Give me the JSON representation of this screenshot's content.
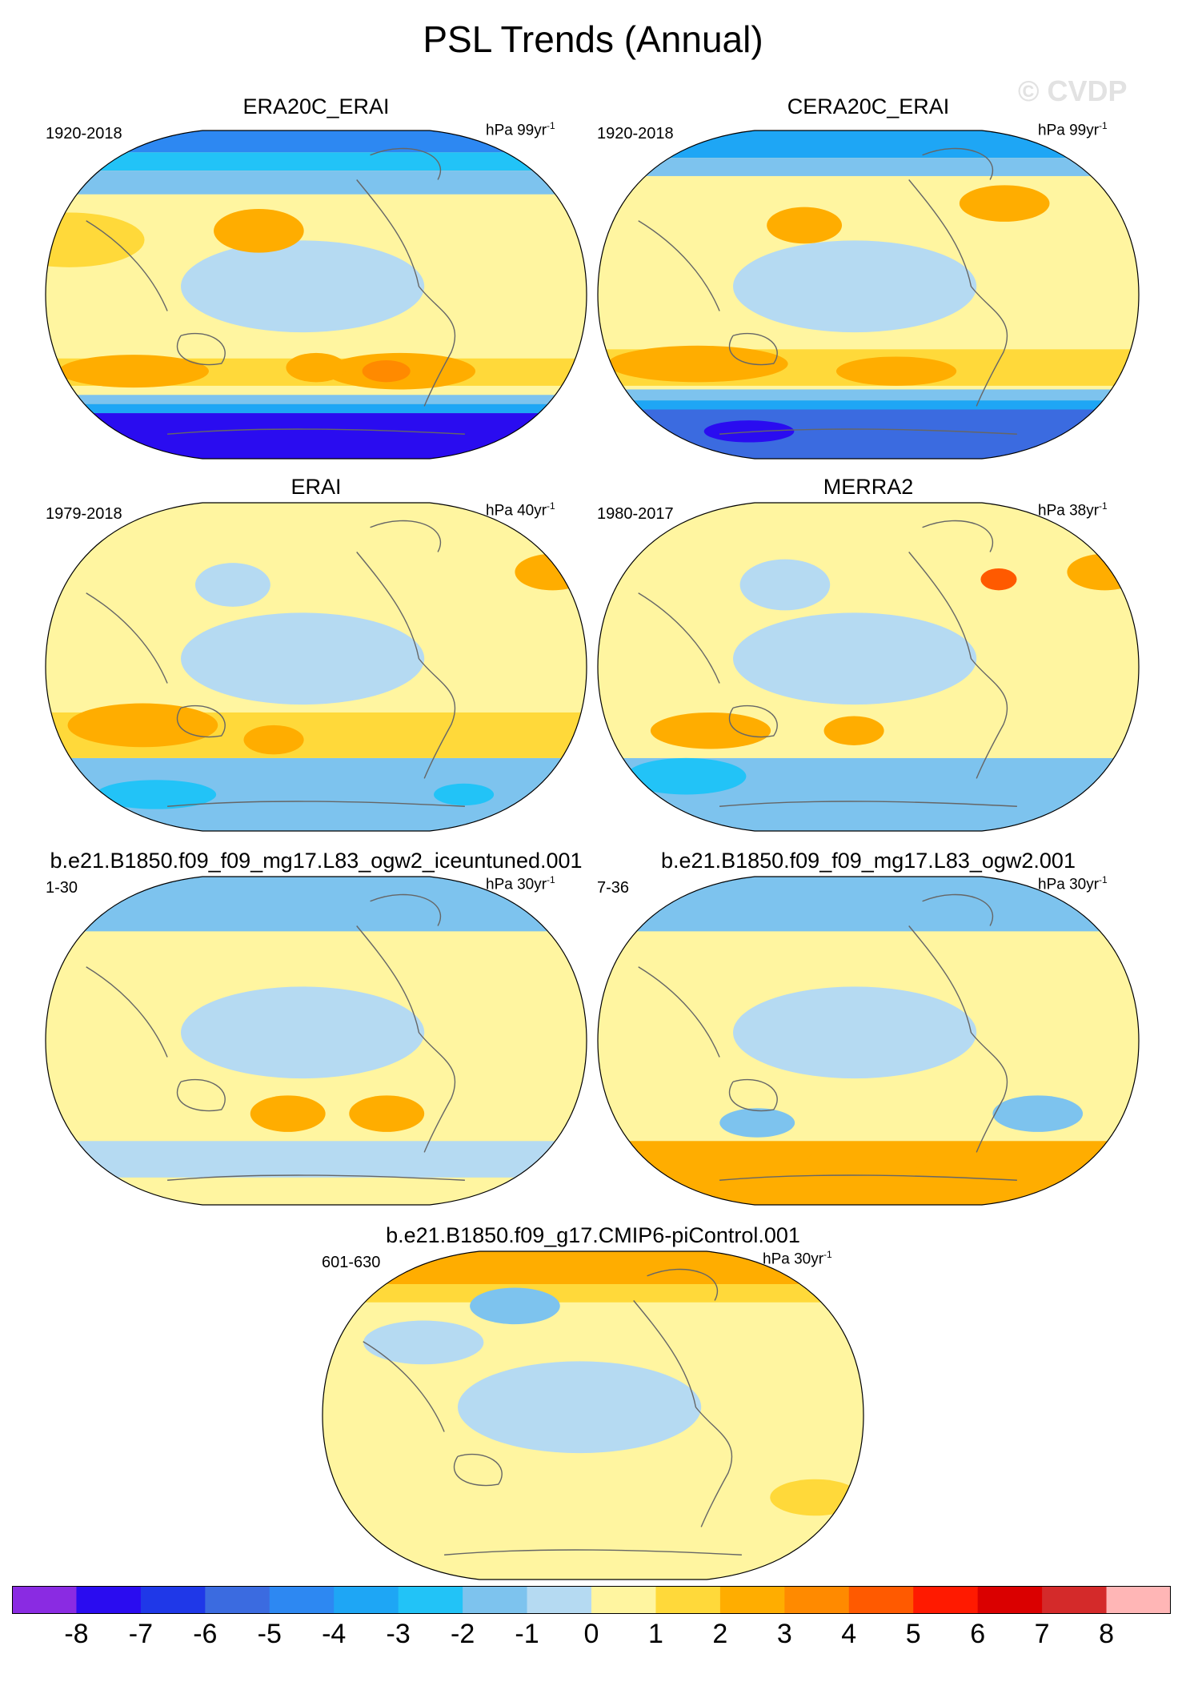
{
  "title": "PSL Trends (Annual)",
  "watermark": "© CVDP",
  "chart_data": {
    "type": "heatmap",
    "title": "PSL Trends (Annual)",
    "panels": [
      {
        "id": "era20c-erai",
        "title": "ERA20C_ERAI",
        "period": "1920-2018",
        "units_base": "hPa 99yr",
        "units_exp": "-1",
        "features": [
          {
            "type": "band",
            "lat": [
              78,
              90
            ],
            "value": -5
          },
          {
            "type": "band",
            "lat": [
              68,
              78
            ],
            "value": -3
          },
          {
            "type": "band",
            "lat": [
              55,
              68
            ],
            "value": -1.5
          },
          {
            "type": "band",
            "lat": [
              -35,
              -50
            ],
            "value": 1.5
          },
          {
            "type": "band",
            "lat": [
              -55,
              -60
            ],
            "value": -2
          },
          {
            "type": "band",
            "lat": [
              -60,
              -65
            ],
            "value": -4
          },
          {
            "type": "band",
            "lat": [
              -65,
              -90
            ],
            "value": -7.5
          },
          {
            "type": "blob",
            "lon": -170,
            "lat": 30,
            "w": 50,
            "h": 15,
            "value": 1.5
          },
          {
            "type": "blob",
            "lon": -40,
            "lat": 35,
            "w": 30,
            "h": 12,
            "value": 2
          },
          {
            "type": "blob",
            "lon": 60,
            "lat": -42,
            "w": 50,
            "h": 10,
            "value": 2.5
          },
          {
            "type": "blob",
            "lon": 50,
            "lat": -42,
            "w": 16,
            "h": 6,
            "value": 3.5
          },
          {
            "type": "blob",
            "lon": -130,
            "lat": -42,
            "w": 50,
            "h": 9,
            "value": 2.5
          },
          {
            "type": "blob",
            "lon": 0,
            "lat": -40,
            "w": 20,
            "h": 8,
            "value": 2
          }
        ]
      },
      {
        "id": "cera20c-erai",
        "title": "CERA20C_ERAI",
        "period": "1920-2018",
        "units_base": "hPa 99yr",
        "units_exp": "-1",
        "features": [
          {
            "type": "band",
            "lat": [
              75,
              90
            ],
            "value": -3.5
          },
          {
            "type": "band",
            "lat": [
              65,
              75
            ],
            "value": -1.5
          },
          {
            "type": "band",
            "lat": [
              -30,
              -50
            ],
            "value": 1.5
          },
          {
            "type": "band",
            "lat": [
              -52,
              -58
            ],
            "value": -1.5
          },
          {
            "type": "band",
            "lat": [
              -58,
              -63
            ],
            "value": -3.5
          },
          {
            "type": "band",
            "lat": [
              -63,
              -90
            ],
            "value": -5.5
          },
          {
            "type": "blob",
            "lon": 100,
            "lat": 50,
            "w": 30,
            "h": 10,
            "value": 2.5
          },
          {
            "type": "blob",
            "lon": -45,
            "lat": 38,
            "w": 25,
            "h": 10,
            "value": 2
          },
          {
            "type": "blob",
            "lon": -120,
            "lat": -38,
            "w": 60,
            "h": 10,
            "value": 2.5
          },
          {
            "type": "blob",
            "lon": 20,
            "lat": -42,
            "w": 40,
            "h": 8,
            "value": 2.5
          },
          {
            "type": "blob",
            "lon": -100,
            "lat": -75,
            "w": 30,
            "h": 6,
            "value": -7.5
          }
        ]
      },
      {
        "id": "erai",
        "title": "ERAI",
        "period": "1979-2018",
        "units_base": "hPa 40yr",
        "units_exp": "-1",
        "features": [
          {
            "type": "band",
            "lat": [
              -50,
              -90
            ],
            "value": -1.5
          },
          {
            "type": "band",
            "lat": [
              -25,
              -50
            ],
            "value": 1
          },
          {
            "type": "blob",
            "lon": 175,
            "lat": 52,
            "w": 25,
            "h": 10,
            "value": 2
          },
          {
            "type": "blob",
            "lon": -120,
            "lat": -32,
            "w": 50,
            "h": 12,
            "value": 2
          },
          {
            "type": "blob",
            "lon": -30,
            "lat": -40,
            "w": 20,
            "h": 8,
            "value": 2
          },
          {
            "type": "blob",
            "lon": -130,
            "lat": -70,
            "w": 40,
            "h": 8,
            "value": -3
          },
          {
            "type": "blob",
            "lon": 120,
            "lat": -70,
            "w": 20,
            "h": 6,
            "value": -3
          },
          {
            "type": "blob",
            "lon": -60,
            "lat": 45,
            "w": 25,
            "h": 12,
            "value": -1
          }
        ]
      },
      {
        "id": "merra2",
        "title": "MERRA2",
        "period": "1980-2017",
        "units_base": "hPa 38yr",
        "units_exp": "-1",
        "features": [
          {
            "type": "band",
            "lat": [
              -50,
              -90
            ],
            "value": -1.5
          },
          {
            "type": "band",
            "lat": [
              -25,
              -50
            ],
            "value": 0.8
          },
          {
            "type": "blob",
            "lon": 95,
            "lat": 48,
            "w": 12,
            "h": 6,
            "value": 4
          },
          {
            "type": "blob",
            "lon": 175,
            "lat": 52,
            "w": 25,
            "h": 10,
            "value": 2
          },
          {
            "type": "blob",
            "lon": -110,
            "lat": -35,
            "w": 40,
            "h": 10,
            "value": 2
          },
          {
            "type": "blob",
            "lon": -10,
            "lat": -35,
            "w": 20,
            "h": 8,
            "value": 2
          },
          {
            "type": "blob",
            "lon": -140,
            "lat": -60,
            "w": 40,
            "h": 10,
            "value": -3
          },
          {
            "type": "blob",
            "lon": -60,
            "lat": 45,
            "w": 30,
            "h": 14,
            "value": -1
          }
        ]
      },
      {
        "id": "iceuntuned",
        "title": "b.e21.B1850.f09_f09_mg17.L83_ogw2_iceuntuned.001",
        "period": "1-30",
        "units_base": "hPa 30yr",
        "units_exp": "-1",
        "features": [
          {
            "type": "band",
            "lat": [
              60,
              90
            ],
            "value": -1.5
          },
          {
            "type": "band",
            "lat": [
              -55,
              -75
            ],
            "value": -1
          },
          {
            "type": "blob",
            "lon": 50,
            "lat": -40,
            "w": 25,
            "h": 10,
            "value": 2
          },
          {
            "type": "blob",
            "lon": -20,
            "lat": -40,
            "w": 25,
            "h": 10,
            "value": 2
          },
          {
            "type": "blob",
            "lon": -150,
            "lat": 25,
            "w": 40,
            "h": 15,
            "value": 0.8
          }
        ]
      },
      {
        "id": "ogw2",
        "title": "b.e21.B1850.f09_f09_mg17.L83_ogw2.001",
        "period": "7-36",
        "units_base": "hPa 30yr",
        "units_exp": "-1",
        "features": [
          {
            "type": "band",
            "lat": [
              60,
              90
            ],
            "value": -1.5
          },
          {
            "type": "band",
            "lat": [
              -55,
              -90
            ],
            "value": 2
          },
          {
            "type": "blob",
            "lon": 120,
            "lat": -40,
            "w": 30,
            "h": 10,
            "value": -2
          },
          {
            "type": "blob",
            "lon": -80,
            "lat": -45,
            "w": 25,
            "h": 8,
            "value": -2
          },
          {
            "type": "blob",
            "lon": 0,
            "lat": -65,
            "w": 40,
            "h": 8,
            "value": 2.5
          }
        ]
      },
      {
        "id": "picontrol",
        "title": "b.e21.B1850.f09_g17.CMIP6-piControl.001",
        "period": "601-630",
        "units_base": "hPa 30yr",
        "units_exp": "-1",
        "features": [
          {
            "type": "band",
            "lat": [
              72,
              90
            ],
            "value": 2
          },
          {
            "type": "band",
            "lat": [
              62,
              72
            ],
            "value": 1
          },
          {
            "type": "blob",
            "lon": -60,
            "lat": 60,
            "w": 30,
            "h": 10,
            "value": -1.5
          },
          {
            "type": "blob",
            "lon": -120,
            "lat": 40,
            "w": 40,
            "h": 12,
            "value": -1
          },
          {
            "type": "blob",
            "lon": 160,
            "lat": -45,
            "w": 30,
            "h": 10,
            "value": 1.5
          }
        ]
      }
    ],
    "colorbar": {
      "ticks": [
        "-8",
        "-7",
        "-6",
        "-5",
        "-4",
        "-3",
        "-2",
        "-1",
        "0",
        "1",
        "2",
        "3",
        "4",
        "5",
        "6",
        "7",
        "8"
      ],
      "colors": [
        "#8a2be2",
        "#2a0cf0",
        "#1f38e8",
        "#3b6be0",
        "#2d88f2",
        "#1ea6f5",
        "#22c3f7",
        "#7dc3ee",
        "#b5daf2",
        "#fff5a0",
        "#ffd93a",
        "#ffad00",
        "#ff8a00",
        "#ff5a00",
        "#ff1a00",
        "#da0000",
        "#d42a2a",
        "#ffb6b6"
      ]
    }
  }
}
